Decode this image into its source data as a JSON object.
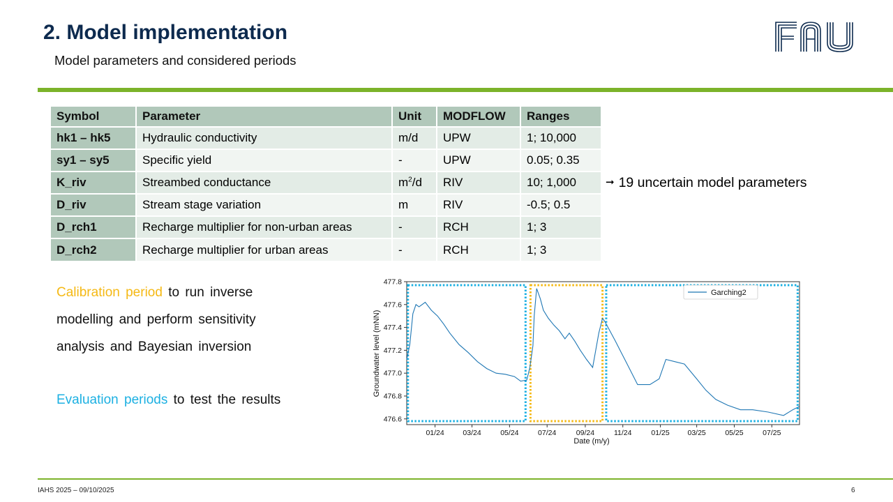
{
  "header": {
    "title": "2. Model implementation",
    "subtitle": "Model parameters and considered periods",
    "logo_text": "FAU"
  },
  "table": {
    "columns": [
      "Symbol",
      "Parameter",
      "Unit",
      "MODFLOW",
      "Ranges"
    ],
    "rows": [
      {
        "symbol": "hk1 – hk5",
        "parameter": "Hydraulic conductivity",
        "unit": "m/d",
        "modflow": "UPW",
        "ranges": "1; 10,000"
      },
      {
        "symbol": "sy1 – sy5",
        "parameter": "Specific yield",
        "unit": "-",
        "modflow": "UPW",
        "ranges": "0.05; 0.35"
      },
      {
        "symbol": "K_riv",
        "parameter": "Streambed conductance",
        "unit_base": "m",
        "unit_sup": "2",
        "unit_tail": "/d",
        "modflow": "RIV",
        "ranges": "10; 1,000"
      },
      {
        "symbol": "D_riv",
        "parameter": "Stream stage variation",
        "unit": "m",
        "modflow": "RIV",
        "ranges": "-0.5; 0.5"
      },
      {
        "symbol": "D_rch1",
        "parameter": "Recharge multiplier for non-urban areas",
        "unit": "-",
        "modflow": "RCH",
        "ranges": "1; 3"
      },
      {
        "symbol": "D_rch2",
        "parameter": "Recharge multiplier for urban areas",
        "unit": "-",
        "modflow": "RCH",
        "ranges": "1; 3"
      }
    ]
  },
  "note": {
    "arrow": "➞",
    "text": "19 uncertain model parameters"
  },
  "calibration": {
    "highlight": "Calibration period",
    "line1_rest": " to run inverse",
    "line2": "modelling and perform sensitivity",
    "line3": "analysis and Bayesian inversion"
  },
  "evaluation": {
    "highlight": "Evaluation periods",
    "rest": " to test the results"
  },
  "footer": {
    "left": "IAHS 2025 – 09/10/2025",
    "page": "6"
  },
  "colors": {
    "title": "#0d2a4e",
    "green_rule": "#7cb32a",
    "table_header": "#b1c8ba",
    "calibration": "#f5b915",
    "evaluation": "#1cb0e2",
    "series": "#1f77b4"
  },
  "chart_data": {
    "type": "line",
    "xlabel": "Date (m/y)",
    "ylabel": "Groundwater level (mNN)",
    "ylim": [
      476.55,
      477.8
    ],
    "xlim": [
      "2023-11-16",
      "2025-08-15"
    ],
    "yticks": [
      476.6,
      476.8,
      477.0,
      477.2,
      477.4,
      477.6,
      477.8
    ],
    "ytick_labels": [
      "476.6",
      "476.8",
      "477.0",
      "477.2",
      "477.4",
      "477.6",
      "477.8"
    ],
    "xticks": [
      "2024-01-01",
      "2024-03-01",
      "2024-05-01",
      "2024-07-01",
      "2024-09-01",
      "2024-11-01",
      "2025-01-01",
      "2025-03-01",
      "2025-05-01",
      "2025-07-01"
    ],
    "xtick_labels": [
      "01/24",
      "03/24",
      "05/24",
      "07/24",
      "09/24",
      "11/24",
      "01/25",
      "03/25",
      "05/25",
      "07/25"
    ],
    "legend": "top-right",
    "grid": false,
    "series": [
      {
        "name": "Garching2",
        "x": [
          "2023-11-16",
          "2023-11-21",
          "2023-11-26",
          "2023-12-01",
          "2023-12-06",
          "2023-12-16",
          "2023-12-26",
          "2024-01-05",
          "2024-01-15",
          "2024-01-25",
          "2024-02-09",
          "2024-02-24",
          "2024-03-10",
          "2024-03-25",
          "2024-04-09",
          "2024-04-24",
          "2024-05-09",
          "2024-05-19",
          "2024-05-29",
          "2024-06-03",
          "2024-06-08",
          "2024-06-10",
          "2024-06-14",
          "2024-06-20",
          "2024-06-25",
          "2024-07-03",
          "2024-07-12",
          "2024-07-21",
          "2024-07-30",
          "2024-08-06",
          "2024-08-15",
          "2024-08-24",
          "2024-09-03",
          "2024-09-13",
          "2024-09-23",
          "2024-09-29",
          "2024-10-03",
          "2024-10-10",
          "2024-10-20",
          "2024-11-06",
          "2024-11-25",
          "2024-12-15",
          "2024-12-30",
          "2025-01-10",
          "2025-01-25",
          "2025-02-09",
          "2025-03-01",
          "2025-03-16",
          "2025-04-01",
          "2025-04-20",
          "2025-05-11",
          "2025-05-31",
          "2025-06-25",
          "2025-07-20",
          "2025-08-04",
          "2025-08-15"
        ],
        "values": [
          477.12,
          477.25,
          477.52,
          477.6,
          477.58,
          477.62,
          477.55,
          477.5,
          477.43,
          477.35,
          477.25,
          477.18,
          477.1,
          477.04,
          477.0,
          476.99,
          476.97,
          476.93,
          476.94,
          477.05,
          477.24,
          477.5,
          477.74,
          477.65,
          477.55,
          477.48,
          477.42,
          477.37,
          477.3,
          477.35,
          477.28,
          477.2,
          477.12,
          477.05,
          477.35,
          477.48,
          477.45,
          477.38,
          477.28,
          477.1,
          476.9,
          476.9,
          476.95,
          477.12,
          477.1,
          477.08,
          476.95,
          476.85,
          476.77,
          476.72,
          476.68,
          476.68,
          476.66,
          476.63,
          476.68,
          476.71
        ]
      }
    ],
    "periods": [
      {
        "label": "Evaluation period 1",
        "start": "2023-11-18",
        "end": "2024-05-27",
        "color": "#1cb0e2"
      },
      {
        "label": "Calibration period",
        "start": "2024-06-04",
        "end": "2024-09-29",
        "color": "#f5b915"
      },
      {
        "label": "Evaluation period 2",
        "start": "2024-10-05",
        "end": "2025-08-12",
        "color": "#1cb0e2"
      }
    ]
  }
}
